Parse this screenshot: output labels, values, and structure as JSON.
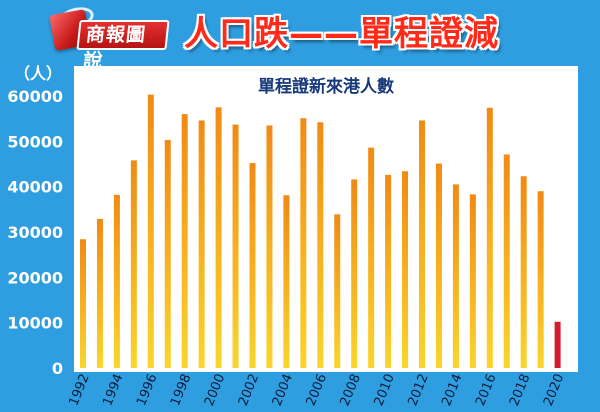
{
  "header": {
    "logo_text": "商報圖說",
    "title": "人口跌——單程證減"
  },
  "colors": {
    "background": "#2f9ee0",
    "bar_gradient_top": "#f08a14",
    "bar_gradient_bottom": "#fbd52c",
    "highlight_bar": "#d61a2c",
    "title": "#ff2a1a"
  },
  "chart_data": {
    "type": "bar",
    "title": "單程證新來港人數",
    "ylabel": "（人）",
    "xlabel": "",
    "ylim": [
      0,
      65000
    ],
    "yticks": [
      0,
      10000,
      20000,
      30000,
      40000,
      50000,
      60000
    ],
    "grid": false,
    "x": [
      1992,
      1993,
      1994,
      1995,
      1996,
      1997,
      1998,
      1999,
      2000,
      2001,
      2002,
      2003,
      2004,
      2005,
      2006,
      2007,
      2008,
      2009,
      2010,
      2011,
      2012,
      2013,
      2014,
      2015,
      2016,
      2017,
      2018,
      2019,
      2020
    ],
    "x_tick_labels": [
      "1992",
      "1994",
      "1996",
      "1998",
      "2000",
      "2002",
      "2004",
      "2006",
      "2008",
      "2010",
      "2012",
      "2014",
      "2016",
      "2018",
      "2020"
    ],
    "values": [
      28400,
      32900,
      38200,
      45800,
      60300,
      50300,
      56000,
      54600,
      57500,
      53700,
      45200,
      53500,
      38100,
      55100,
      54200,
      33900,
      41600,
      48600,
      42600,
      43400,
      54600,
      45100,
      40500,
      38300,
      57400,
      47100,
      42300,
      39000,
      10200
    ],
    "highlight_index": 28
  }
}
